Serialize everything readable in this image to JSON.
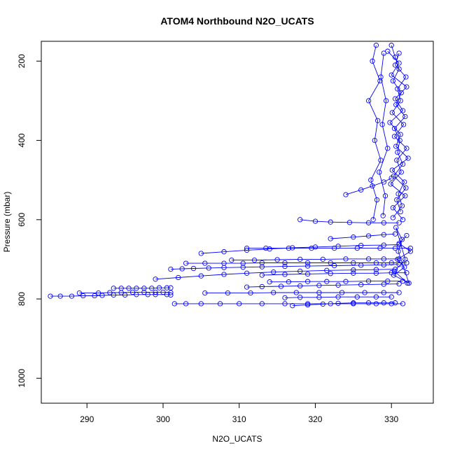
{
  "chart_data": {
    "type": "scatter",
    "title": "ATOM4 Northbound N2O_UCATS",
    "xlabel": "N2O_UCATS",
    "ylabel": "Pressure (mbar)",
    "xlim": [
      284,
      335.5
    ],
    "ylim": [
      1063,
      150
    ],
    "y_reversed": true,
    "x_ticks": [
      290,
      300,
      310,
      320,
      330
    ],
    "y_ticks": [
      200,
      400,
      600,
      800,
      1000
    ],
    "marker": "open-circle",
    "connected": true,
    "color": "#0000ff",
    "series": [
      {
        "x": [
          285.2,
          286.5,
          288.0,
          289.5,
          291.0,
          292.0,
          293.5,
          295.0,
          296.5,
          298.0,
          299.0,
          300.5,
          301.0
        ],
        "y": [
          793,
          793,
          793,
          792,
          792,
          791,
          790,
          790,
          789,
          789,
          789,
          789,
          790
        ]
      },
      {
        "x": [
          289.0,
          291.5,
          293.0,
          294.5,
          296.0,
          297.5,
          299.0,
          300.0,
          301.0
        ],
        "y": [
          785,
          785,
          784,
          784,
          783,
          783,
          783,
          783,
          784
        ]
      },
      {
        "x": [
          293.5,
          294.5,
          295.5,
          296.5,
          297.5,
          298.5,
          299.5,
          300.5,
          301.0
        ],
        "y": [
          773,
          773,
          773,
          773,
          773,
          773,
          772,
          772,
          772
        ]
      },
      {
        "x": [
          301.5,
          303.0,
          305.0,
          307.5,
          310.0,
          313.0,
          316.0,
          319.0,
          322.0,
          325.0,
          328.0,
          330.0,
          331.5
        ],
        "y": [
          812,
          812,
          812,
          812,
          812,
          812,
          812,
          812,
          812,
          812,
          812,
          812,
          812
        ]
      },
      {
        "x": [
          301.0,
          302.5,
          304.0,
          306.0,
          308.0,
          310.5,
          313.0,
          316.0,
          319.0,
          322.5,
          326.0,
          329.0,
          331.0
        ],
        "y": [
          725,
          724,
          723,
          722,
          721,
          720,
          719,
          718,
          717,
          716,
          715,
          714,
          713
        ]
      },
      {
        "x": [
          303.0,
          305.5,
          308.0,
          310.5,
          313.0,
          316.0,
          319.0,
          322.0,
          325.0,
          328.0,
          330.0,
          332.0
        ],
        "y": [
          710,
          710,
          710,
          710,
          709,
          709,
          709,
          709,
          709,
          709,
          709,
          709
        ]
      },
      {
        "x": [
          311.0,
          313.5,
          316.5,
          319.5,
          322.5,
          325.5,
          328.5,
          330.5,
          332.5
        ],
        "y": [
          672,
          672,
          672,
          672,
          672,
          672,
          672,
          672,
          672
        ]
      },
      {
        "x": [
          305.0,
          308.0,
          311.0,
          314.0,
          317.0,
          320.0,
          323.0,
          326.0,
          329.0,
          331.0
        ],
        "y": [
          685,
          681,
          677,
          674,
          671,
          669,
          667,
          665,
          664,
          663
        ]
      },
      {
        "x": [
          299.0,
          302.0,
          305.0,
          308.0,
          311.0,
          314.5,
          318.0,
          321.5,
          325.0,
          328.0,
          330.5
        ],
        "y": [
          750,
          746,
          742,
          738,
          735,
          732,
          730,
          728,
          727,
          726,
          725
        ]
      },
      {
        "x": [
          305.5,
          308.5,
          311.5,
          314.5,
          317.5,
          320.5,
          323.5,
          326.5,
          329.0,
          331.0
        ],
        "y": [
          785,
          785,
          785,
          784,
          784,
          784,
          784,
          784,
          784,
          784
        ]
      },
      {
        "x": [
          314.0,
          316.5,
          319.0,
          321.5,
          324.0,
          327.0,
          329.5,
          331.5
        ],
        "y": [
          757,
          757,
          756,
          756,
          756,
          755,
          755,
          755
        ]
      },
      {
        "x": [
          316.0,
          318.0,
          320.5,
          323.0,
          325.5,
          328.0,
          330.0
        ],
        "y": [
          797,
          796,
          796,
          795,
          795,
          795,
          795
        ]
      },
      {
        "x": [
          317.0,
          319.0,
          321.0,
          323.0,
          325.0,
          327.0,
          329.0,
          330.5
        ],
        "y": [
          817,
          815,
          813,
          811,
          810,
          810,
          810,
          810
        ]
      },
      {
        "x": [
          318.0,
          320.0,
          322.0,
          324.5,
          327.0,
          329.0,
          331.0
        ],
        "y": [
          600,
          604,
          606,
          607,
          608,
          608,
          608
        ]
      },
      {
        "x": [
          322.0,
          325.0,
          327.0,
          329.0,
          330.5
        ],
        "y": [
          648,
          644,
          641,
          638,
          636
        ]
      },
      {
        "x": [
          324.0,
          326.0,
          327.5,
          329.0,
          330.0
        ],
        "y": [
          537,
          525,
          515,
          505,
          495
        ]
      },
      {
        "x": [
          309.0,
          312.0,
          315.0,
          318.0,
          321.0,
          324.0,
          327.0,
          329.0,
          331.0
        ],
        "y": [
          702,
          702,
          701,
          700,
          700,
          699,
          699,
          699,
          699
        ]
      },
      {
        "x": [
          313.0,
          316.0,
          319.0,
          322.0,
          325.0,
          328.0,
          330.0,
          332.0
        ],
        "y": [
          740,
          738,
          737,
          736,
          735,
          735,
          734,
          734
        ]
      },
      {
        "x": [
          311.0,
          313.0,
          315.5,
          318.0,
          320.5,
          323.0,
          326.0,
          329.0,
          331.0
        ],
        "y": [
          770,
          769,
          768,
          767,
          766,
          765,
          764,
          763,
          762
        ]
      },
      {
        "x": [
          330.0,
          330.5,
          331.0,
          330.2,
          331.3,
          330.6,
          331.8,
          330.4,
          331.1,
          330.8,
          331.5,
          330.3,
          331.9,
          330.7,
          331.2
        ],
        "y": [
          160,
          190,
          220,
          250,
          280,
          310,
          340,
          370,
          400,
          430,
          460,
          490,
          520,
          550,
          580
        ]
      },
      {
        "x": [
          329.5,
          331.0,
          330.0,
          332.0,
          330.5,
          331.5,
          329.8,
          331.2,
          330.6,
          332.2,
          330.1,
          331.7,
          330.9,
          331.4,
          330.2
        ],
        "y": [
          175,
          205,
          235,
          265,
          295,
          325,
          355,
          385,
          415,
          445,
          475,
          505,
          535,
          565,
          595
        ]
      },
      {
        "x": [
          331.5,
          330.2,
          331.8,
          329.9,
          331.3,
          330.7,
          332.0,
          330.4,
          331.6,
          330.1,
          331.2,
          330.8,
          331.9,
          330.5,
          331.0
        ],
        "y": [
          600,
          570,
          540,
          510,
          480,
          450,
          420,
          390,
          360,
          330,
          300,
          270,
          240,
          210,
          180
        ]
      },
      {
        "x": [
          332.0,
          331.0,
          332.5,
          330.8,
          331.7,
          330.3,
          332.3,
          330.9,
          331.4,
          330.6,
          331.8,
          330.4,
          332.1
        ],
        "y": [
          640,
          660,
          680,
          700,
          720,
          740,
          760,
          680,
          650,
          620,
          700,
          730,
          760
        ]
      },
      {
        "x": [
          328.0,
          327.5,
          328.5,
          327.0,
          328.2,
          327.8,
          328.6,
          327.3,
          328.1,
          327.6
        ],
        "y": [
          160,
          200,
          250,
          300,
          350,
          400,
          450,
          500,
          550,
          600
        ]
      },
      {
        "x": [
          329.0,
          328.6,
          329.3,
          328.8,
          329.5,
          328.4,
          329.2,
          328.9
        ],
        "y": [
          180,
          240,
          300,
          360,
          420,
          480,
          540,
          590
        ]
      }
    ]
  }
}
